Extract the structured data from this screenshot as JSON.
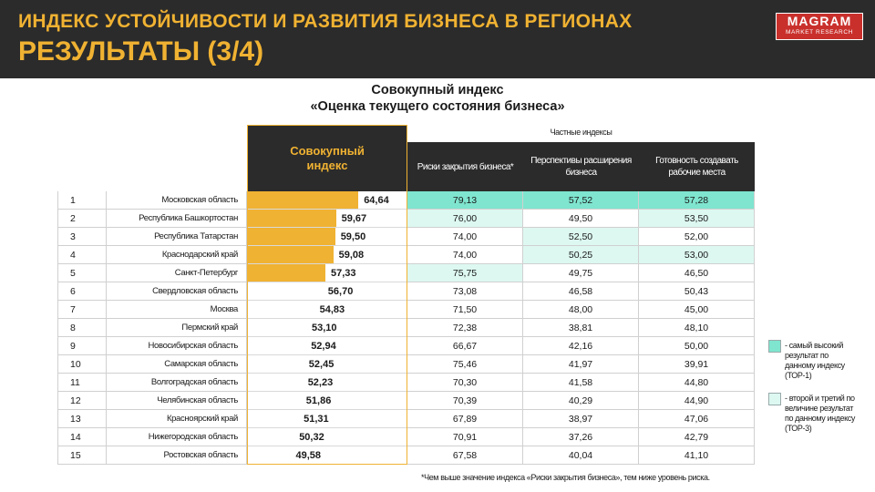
{
  "header": {
    "title_line1": "ИНДЕКС УСТОЙЧИВОСТИ И РАЗВИТИЯ БИЗНЕСА В РЕГИОНАХ",
    "title_line2": "РЕЗУЛЬТАТЫ (3/4)",
    "logo_main": "MAGRAM",
    "logo_sub": "MARKET RESEARCH"
  },
  "chart_data": {
    "type": "table",
    "title_line1": "Совокупный индекс",
    "title_line2": "«Оценка текущего состояния бизнеса»",
    "main_column_header": "Совокупный индекс",
    "sub_indices_caption": "Частные индексы",
    "sub_columns": [
      "Риски закрытия бизнеса*",
      "Перспективы расширения бизнеса",
      "Готовность создавать рабочие места"
    ],
    "bar_range": [
      40,
      65
    ],
    "rows": [
      {
        "rank": "1",
        "region": "Московская область",
        "index": 64.64,
        "index_label": "64,64",
        "values": [
          "79,13",
          "57,52",
          "57,28"
        ],
        "highlight": [
          "top1",
          "top1",
          "top1"
        ]
      },
      {
        "rank": "2",
        "region": "Республика Башкортостан",
        "index": 59.67,
        "index_label": "59,67",
        "values": [
          "76,00",
          "49,50",
          "53,50"
        ],
        "highlight": [
          "top3",
          "none",
          "top3"
        ]
      },
      {
        "rank": "3",
        "region": "Республика Татарстан",
        "index": 59.5,
        "index_label": "59,50",
        "values": [
          "74,00",
          "52,50",
          "52,00"
        ],
        "highlight": [
          "none",
          "top3",
          "none"
        ]
      },
      {
        "rank": "4",
        "region": "Краснодарский край",
        "index": 59.08,
        "index_label": "59,08",
        "values": [
          "74,00",
          "50,25",
          "53,00"
        ],
        "highlight": [
          "none",
          "top3",
          "top3"
        ]
      },
      {
        "rank": "5",
        "region": "Санкт-Петербург",
        "index": 57.33,
        "index_label": "57,33",
        "values": [
          "75,75",
          "49,75",
          "46,50"
        ],
        "highlight": [
          "top3",
          "none",
          "none"
        ]
      },
      {
        "rank": "6",
        "region": "Свердловская область",
        "index": 56.7,
        "index_label": "56,70",
        "values": [
          "73,08",
          "46,58",
          "50,43"
        ],
        "highlight": [
          "none",
          "none",
          "none"
        ]
      },
      {
        "rank": "7",
        "region": "Москва",
        "index": 54.83,
        "index_label": "54,83",
        "values": [
          "71,50",
          "48,00",
          "45,00"
        ],
        "highlight": [
          "none",
          "none",
          "none"
        ]
      },
      {
        "rank": "8",
        "region": "Пермский край",
        "index": 53.1,
        "index_label": "53,10",
        "values": [
          "72,38",
          "38,81",
          "48,10"
        ],
        "highlight": [
          "none",
          "none",
          "none"
        ]
      },
      {
        "rank": "9",
        "region": "Новосибирская область",
        "index": 52.94,
        "index_label": "52,94",
        "values": [
          "66,67",
          "42,16",
          "50,00"
        ],
        "highlight": [
          "none",
          "none",
          "none"
        ]
      },
      {
        "rank": "10",
        "region": "Самарская область",
        "index": 52.45,
        "index_label": "52,45",
        "values": [
          "75,46",
          "41,97",
          "39,91"
        ],
        "highlight": [
          "none",
          "none",
          "none"
        ]
      },
      {
        "rank": "11",
        "region": "Волгоградская область",
        "index": 52.23,
        "index_label": "52,23",
        "values": [
          "70,30",
          "41,58",
          "44,80"
        ],
        "highlight": [
          "none",
          "none",
          "none"
        ]
      },
      {
        "rank": "12",
        "region": "Челябинская область",
        "index": 51.86,
        "index_label": "51,86",
        "values": [
          "70,39",
          "40,29",
          "44,90"
        ],
        "highlight": [
          "none",
          "none",
          "none"
        ]
      },
      {
        "rank": "13",
        "region": "Красноярский край",
        "index": 51.31,
        "index_label": "51,31",
        "values": [
          "67,89",
          "38,97",
          "47,06"
        ],
        "highlight": [
          "none",
          "none",
          "none"
        ]
      },
      {
        "rank": "14",
        "region": "Нижегородская область",
        "index": 50.32,
        "index_label": "50,32",
        "values": [
          "70,91",
          "37,26",
          "42,79"
        ],
        "highlight": [
          "none",
          "none",
          "none"
        ]
      },
      {
        "rank": "15",
        "region": "Ростовская область",
        "index": 49.58,
        "index_label": "49,58",
        "values": [
          "67,58",
          "40,04",
          "41,10"
        ],
        "highlight": [
          "none",
          "none",
          "none"
        ]
      }
    ]
  },
  "legend": {
    "top1_text": "- самый высокий результат по данному индексу (ТОР-1)",
    "top3_text": "- второй и третий по величине результат по данному индексу (ТОР-3)"
  },
  "footnote": "*Чем выше значение индекса «Риски закрытия бизнеса», тем ниже уровень риска.",
  "colors": {
    "accent": "#f0b232",
    "dark": "#2b2b2b",
    "top1": "#7fe5cf",
    "top3": "#ddf8f1",
    "logo": "#c9302c"
  }
}
